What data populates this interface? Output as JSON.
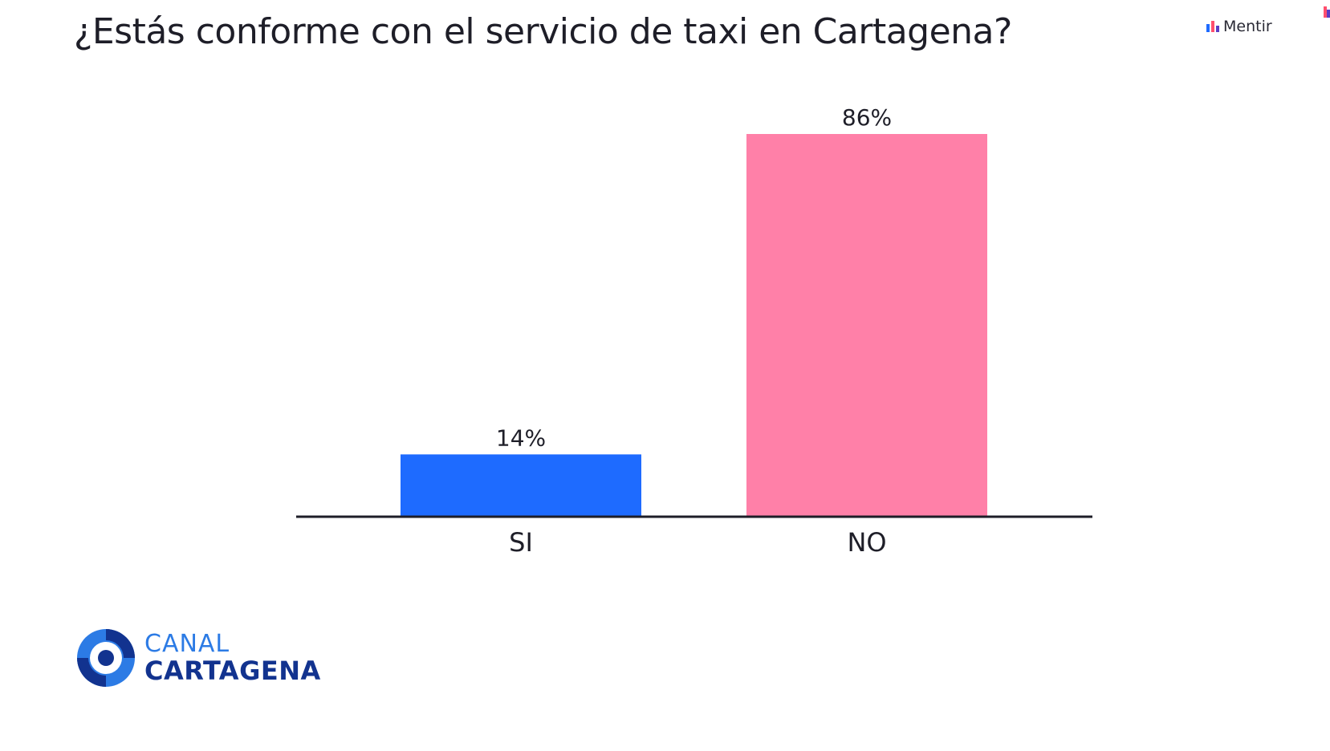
{
  "page": {
    "title": "¿Estás conforme con el servicio de taxi en Cartagena?"
  },
  "brand": {
    "label": "Mentir",
    "icon": "bar-chart-icon"
  },
  "logo": {
    "line1": "CANAL",
    "line2": "CARTAGENA",
    "icon": "canal-cartagena-circle-logo",
    "colors": {
      "light": "#2c7be5",
      "dark": "#12338f"
    }
  },
  "chart_data": {
    "type": "bar",
    "title": "¿Estás conforme con el servicio de taxi en Cartagena?",
    "categories": [
      "SI",
      "NO"
    ],
    "values": [
      14,
      86
    ],
    "value_labels": [
      "14%",
      "86%"
    ],
    "unit": "%",
    "colors": [
      "#1e6bff",
      "#ff80a8"
    ],
    "ylim": [
      0,
      86
    ],
    "grid": false,
    "legend": "none",
    "axis_color": "#1e1e28"
  }
}
